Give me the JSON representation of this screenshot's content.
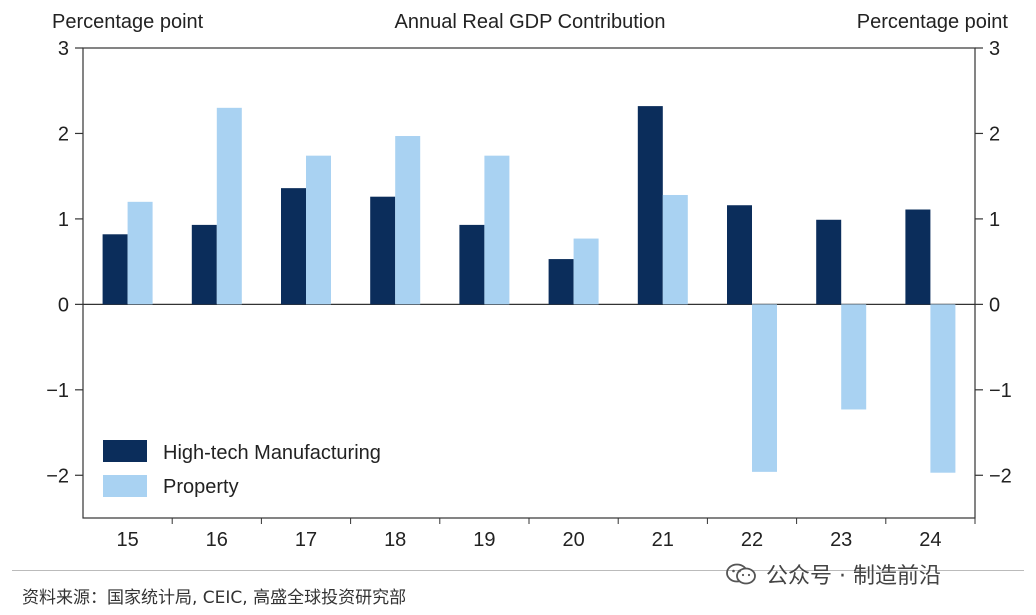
{
  "chart_data": {
    "type": "bar",
    "title": "Annual Real GDP Contribution",
    "ylabel_left": "Percentage point",
    "ylabel_right": "Percentage point",
    "categories": [
      "15",
      "16",
      "17",
      "18",
      "19",
      "20",
      "21",
      "22",
      "23",
      "24"
    ],
    "series": [
      {
        "name": "High-tech Manufacturing",
        "color": "#0b2d5b",
        "values": [
          0.82,
          0.93,
          1.36,
          1.26,
          0.93,
          0.53,
          2.32,
          1.16,
          0.99,
          1.11
        ]
      },
      {
        "name": "Property",
        "color": "#a9d2f2",
        "values": [
          1.2,
          2.3,
          1.74,
          1.97,
          1.74,
          0.77,
          1.28,
          -1.96,
          -1.23,
          -1.97
        ]
      }
    ],
    "ylim": [
      -2.5,
      3
    ],
    "yticks": [
      3,
      2,
      1,
      0,
      -1,
      -2
    ],
    "legend": "bottom-left"
  },
  "source_text": "资料来源：国家统计局, CEIC, 高盛全球投资研究部",
  "watermark": {
    "text": "公众号 · 制造前沿",
    "icon": "wechat-icon"
  }
}
